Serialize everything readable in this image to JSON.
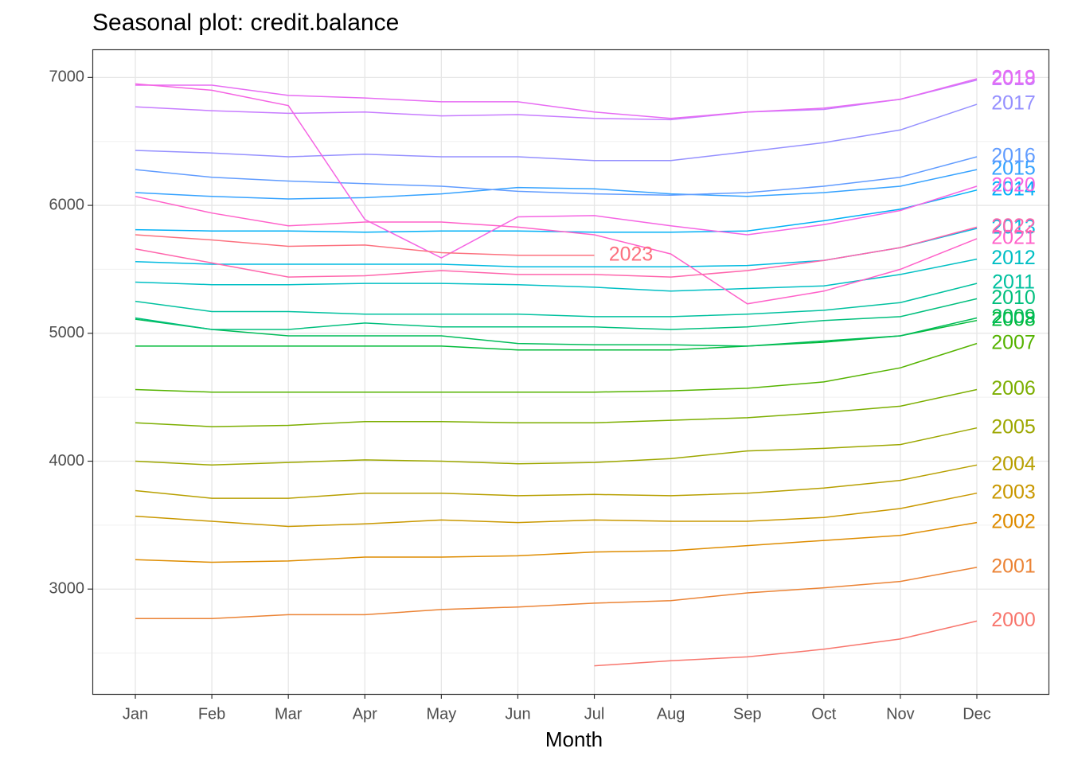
{
  "chart_data": {
    "type": "line",
    "title": "Seasonal plot: credit.balance",
    "x_label": "Month",
    "categories": [
      "Jan",
      "Feb",
      "Mar",
      "Apr",
      "May",
      "Jun",
      "Jul",
      "Aug",
      "Sep",
      "Oct",
      "Nov",
      "Dec"
    ],
    "ylim": [
      2180,
      7220
    ],
    "yticks": [
      3000,
      4000,
      5000,
      6000,
      7000
    ],
    "grid": true,
    "minor_grid": true,
    "series": [
      {
        "name": "2000",
        "color": "#F8766D",
        "values": [
          null,
          null,
          null,
          null,
          null,
          null,
          2400,
          2440,
          2470,
          2530,
          2610,
          2750
        ]
      },
      {
        "name": "2001",
        "color": "#EB8335",
        "values": [
          2770,
          2770,
          2800,
          2800,
          2840,
          2860,
          2890,
          2910,
          2970,
          3010,
          3060,
          3170
        ]
      },
      {
        "name": "2002",
        "color": "#DE8C00",
        "values": [
          3230,
          3210,
          3220,
          3250,
          3250,
          3260,
          3290,
          3300,
          3340,
          3380,
          3420,
          3520
        ]
      },
      {
        "name": "2003",
        "color": "#C99800",
        "values": [
          3570,
          3530,
          3490,
          3510,
          3540,
          3520,
          3540,
          3530,
          3530,
          3560,
          3630,
          3750
        ]
      },
      {
        "name": "2004",
        "color": "#B79F00",
        "values": [
          3770,
          3710,
          3710,
          3750,
          3750,
          3730,
          3740,
          3730,
          3750,
          3790,
          3850,
          3970
        ]
      },
      {
        "name": "2005",
        "color": "#9DA700",
        "values": [
          4000,
          3970,
          3990,
          4010,
          4000,
          3980,
          3990,
          4020,
          4080,
          4100,
          4130,
          4260
        ]
      },
      {
        "name": "2006",
        "color": "#7CAE00",
        "values": [
          4300,
          4270,
          4280,
          4310,
          4310,
          4300,
          4300,
          4320,
          4340,
          4380,
          4430,
          4560
        ]
      },
      {
        "name": "2007",
        "color": "#55B300",
        "values": [
          4560,
          4540,
          4540,
          4540,
          4540,
          4540,
          4540,
          4550,
          4570,
          4620,
          4730,
          4920
        ]
      },
      {
        "name": "2008",
        "color": "#00BA38",
        "values": [
          4900,
          4900,
          4900,
          4900,
          4900,
          4870,
          4870,
          4870,
          4900,
          4930,
          4980,
          5100
        ]
      },
      {
        "name": "2009",
        "color": "#00BC59",
        "values": [
          5110,
          5030,
          4980,
          4980,
          4980,
          4920,
          4910,
          4910,
          4900,
          4940,
          4980,
          5120
        ]
      },
      {
        "name": "2010",
        "color": "#00BF7D",
        "values": [
          5120,
          5030,
          5030,
          5080,
          5050,
          5050,
          5050,
          5030,
          5050,
          5100,
          5130,
          5270
        ]
      },
      {
        "name": "2011",
        "color": "#00C19F",
        "values": [
          5250,
          5170,
          5170,
          5150,
          5150,
          5150,
          5130,
          5130,
          5150,
          5180,
          5240,
          5390
        ]
      },
      {
        "name": "2012",
        "color": "#00BFC4",
        "values": [
          5400,
          5380,
          5380,
          5390,
          5390,
          5380,
          5360,
          5330,
          5350,
          5370,
          5460,
          5580
        ]
      },
      {
        "name": "2013",
        "color": "#00BAE0",
        "values": [
          5560,
          5540,
          5540,
          5540,
          5540,
          5520,
          5520,
          5520,
          5530,
          5570,
          5670,
          5820
        ]
      },
      {
        "name": "2014",
        "color": "#00B0F6",
        "values": [
          5810,
          5800,
          5800,
          5790,
          5800,
          5800,
          5790,
          5790,
          5800,
          5880,
          5970,
          6120
        ]
      },
      {
        "name": "2015",
        "color": "#35A2FF",
        "values": [
          6100,
          6070,
          6050,
          6060,
          6090,
          6140,
          6130,
          6090,
          6070,
          6100,
          6150,
          6280
        ]
      },
      {
        "name": "2016",
        "color": "#619CFF",
        "values": [
          6280,
          6220,
          6190,
          6170,
          6150,
          6110,
          6090,
          6080,
          6100,
          6150,
          6220,
          6380
        ]
      },
      {
        "name": "2017",
        "color": "#9590FF",
        "values": [
          6430,
          6410,
          6380,
          6400,
          6380,
          6380,
          6350,
          6350,
          6420,
          6490,
          6590,
          6790
        ]
      },
      {
        "name": "2018",
        "color": "#C77CFF",
        "values": [
          6770,
          6740,
          6720,
          6730,
          6700,
          6710,
          6680,
          6670,
          6730,
          6750,
          6830,
          6980
        ]
      },
      {
        "name": "2019",
        "color": "#E76BF3",
        "values": [
          6940,
          6940,
          6860,
          6840,
          6810,
          6810,
          6730,
          6680,
          6730,
          6760,
          6830,
          6990
        ]
      },
      {
        "name": "2020",
        "color": "#F564E3",
        "values": [
          6950,
          6900,
          6780,
          5890,
          5590,
          5910,
          5920,
          5840,
          5770,
          5850,
          5960,
          6150
        ]
      },
      {
        "name": "2021",
        "color": "#FF61C9",
        "values": [
          6070,
          5940,
          5840,
          5870,
          5870,
          5830,
          5770,
          5620,
          5230,
          5330,
          5500,
          5740
        ]
      },
      {
        "name": "2022",
        "color": "#FF65AC",
        "values": [
          5660,
          5550,
          5440,
          5450,
          5490,
          5460,
          5460,
          5440,
          5490,
          5570,
          5670,
          5830
        ]
      },
      {
        "name": "2023",
        "color": "#FC717F",
        "values": [
          5770,
          5730,
          5680,
          5690,
          5630,
          5610,
          5610,
          null,
          null,
          null,
          null,
          null
        ]
      }
    ]
  }
}
